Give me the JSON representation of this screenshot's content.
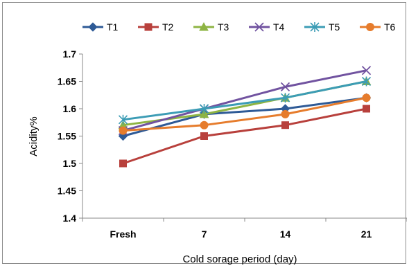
{
  "chart_data": {
    "type": "line",
    "title": "",
    "xlabel": "Cold sorage period (day)",
    "ylabel": "Acidity%",
    "categories": [
      "Fresh",
      "7",
      "14",
      "21"
    ],
    "ylim": [
      1.4,
      1.7
    ],
    "yticks": [
      "1.4",
      "1.45",
      "1.5",
      "1.55",
      "1.6",
      "1.65",
      "1.7"
    ],
    "grid": false,
    "legend_position": "top",
    "series": [
      {
        "name": "T1",
        "values": [
          1.55,
          1.59,
          1.6,
          1.62
        ],
        "color": "#2e5a96",
        "marker": "diamond"
      },
      {
        "name": "T2",
        "values": [
          1.5,
          1.55,
          1.57,
          1.6
        ],
        "color": "#b8403c",
        "marker": "square"
      },
      {
        "name": "T3",
        "values": [
          1.57,
          1.59,
          1.62,
          1.65
        ],
        "color": "#8eb443",
        "marker": "triangle"
      },
      {
        "name": "T4",
        "values": [
          1.56,
          1.6,
          1.64,
          1.67
        ],
        "color": "#7153a0",
        "marker": "x"
      },
      {
        "name": "T5",
        "values": [
          1.58,
          1.6,
          1.62,
          1.65
        ],
        "color": "#3c9cb5",
        "marker": "star"
      },
      {
        "name": "T6",
        "values": [
          1.56,
          1.57,
          1.59,
          1.62
        ],
        "color": "#e67c2c",
        "marker": "circle"
      }
    ]
  }
}
